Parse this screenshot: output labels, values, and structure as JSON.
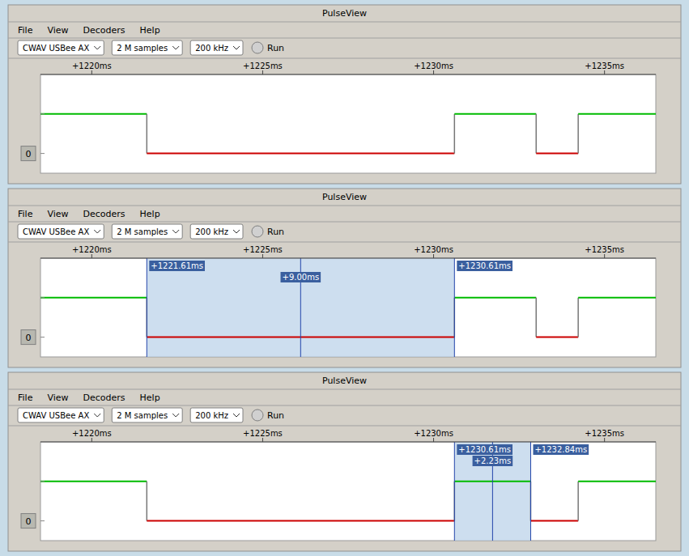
{
  "chart_data": [
    {
      "type": "step",
      "title": "PulseView",
      "menu": [
        "File",
        "View",
        "Decoders",
        "Help"
      ],
      "toolbar": [
        "CWAV USBee AX",
        "2 M samples",
        "200 kHz",
        "Run"
      ],
      "ylabel": "0",
      "bins": [
        -1.5,
        1.61,
        10.61,
        13.0,
        14.23,
        16.5
      ],
      "values": [
        1,
        0,
        1,
        0,
        1
      ],
      "colors": [
        "#00bb00",
        "#cc0000",
        "#00bb00",
        "#cc0000",
        "#00bb00"
      ],
      "xlim": [
        -1.5,
        16.5
      ],
      "xticks": [
        {
          "value": 0.0,
          "label": "+1220ms"
        },
        {
          "value": 5.0,
          "label": "+1225ms"
        },
        {
          "value": 10.0,
          "label": "+1230ms"
        },
        {
          "value": 15.0,
          "label": "+1235ms"
        }
      ],
      "ylim": [
        -0.5,
        2
      ],
      "yticks": [
        0,
        1
      ],
      "tick_labels": "x",
      "grid": false,
      "annotations": []
    },
    {
      "type": "step",
      "title": "PulseView",
      "menu": [
        "File",
        "View",
        "Decoders",
        "Help"
      ],
      "toolbar": [
        "CWAV USBee AX",
        "2 M samples",
        "200 kHz",
        "Run"
      ],
      "ylabel": "0",
      "bins": [
        -1.5,
        1.61,
        10.61,
        13.0,
        14.23,
        16.5
      ],
      "values": [
        1,
        0,
        1,
        0,
        1
      ],
      "colors": [
        "#00bb00",
        "#cc0000",
        "#00bb00",
        "#cc0000",
        "#00bb00"
      ],
      "xlim": [
        -1.5,
        16.5
      ],
      "xticks": [
        {
          "value": 0.0,
          "label": "+1220ms"
        },
        {
          "value": 5.0,
          "label": "+1225ms"
        },
        {
          "value": 10.0,
          "label": "+1230ms"
        },
        {
          "value": 15.0,
          "label": "+1235ms"
        }
      ],
      "ylim": [
        -0.5,
        2
      ],
      "yticks": [
        0,
        1
      ],
      "tick_labels": "x",
      "grid": false,
      "selection": [
        1.61,
        10.61
      ],
      "annotations": [
        {
          "x": 1.61,
          "text": "+1221.61ms",
          "side": "right"
        },
        {
          "x": 6.11,
          "text": "+9.00ms",
          "side": "center"
        },
        {
          "x": 10.61,
          "text": "+1230.61ms",
          "side": "right"
        }
      ]
    },
    {
      "type": "step",
      "title": "PulseView",
      "menu": [
        "File",
        "View",
        "Decoders",
        "Help"
      ],
      "toolbar": [
        "CWAV USBee AX",
        "2 M samples",
        "200 kHz",
        "Run"
      ],
      "ylabel": "0",
      "bins": [
        -1.5,
        1.61,
        10.61,
        12.84,
        14.23,
        16.5
      ],
      "values": [
        1,
        0,
        1,
        0,
        1
      ],
      "colors": [
        "#00bb00",
        "#cc0000",
        "#00bb00",
        "#cc0000",
        "#00bb00"
      ],
      "xlim": [
        -1.5,
        16.5
      ],
      "xticks": [
        {
          "value": 0.0,
          "label": "+1220ms"
        },
        {
          "value": 5.0,
          "label": "+1225ms"
        },
        {
          "value": 10.0,
          "label": "+1230ms"
        },
        {
          "value": 15.0,
          "label": "+1235ms"
        }
      ],
      "ylim": [
        -0.5,
        2
      ],
      "yticks": [
        0,
        1
      ],
      "tick_labels": "x",
      "grid": false,
      "selection": [
        10.61,
        12.84
      ],
      "annotations": [
        {
          "x": 10.61,
          "text": "+1230.61ms",
          "side": "right"
        },
        {
          "x": 11.725,
          "text": "+2.23ms",
          "side": "center"
        },
        {
          "x": 12.84,
          "text": "+1232.84ms",
          "side": "right"
        }
      ]
    }
  ]
}
